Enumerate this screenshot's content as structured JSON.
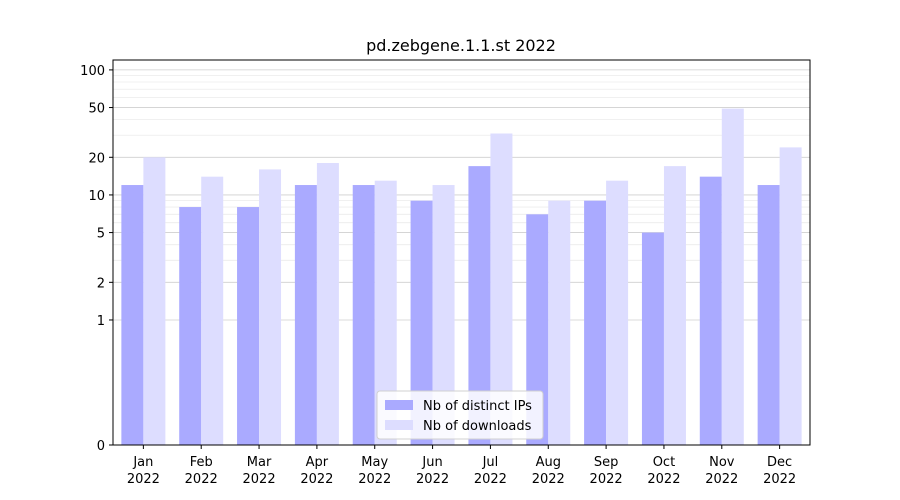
{
  "chart_data": {
    "type": "bar",
    "title": "pd.zebgene.1.1.st 2022",
    "xlabel": "",
    "ylabel": "",
    "yscale": "symlog",
    "ylim": [
      0,
      120
    ],
    "yticks": [
      0,
      1,
      2,
      5,
      10,
      20,
      50,
      100
    ],
    "ytick_labels": [
      "0",
      "1",
      "2",
      "5",
      "10",
      "20",
      "50",
      "100"
    ],
    "categories": [
      "Jan\n2022",
      "Feb\n2022",
      "Mar\n2022",
      "Apr\n2022",
      "May\n2022",
      "Jun\n2022",
      "Jul\n2022",
      "Aug\n2022",
      "Sep\n2022",
      "Oct\n2022",
      "Nov\n2022",
      "Dec\n2022"
    ],
    "series": [
      {
        "name": "Nb of distinct IPs",
        "color": "#aaaaff",
        "values": [
          12,
          8,
          8,
          12,
          12,
          9,
          17,
          7,
          9,
          5,
          14,
          12
        ]
      },
      {
        "name": "Nb of downloads",
        "color": "#ddddff",
        "values": [
          20,
          14,
          16,
          18,
          13,
          12,
          31,
          9,
          13,
          17,
          49,
          24
        ]
      }
    ],
    "grid": true,
    "legend_position": "lower center"
  }
}
